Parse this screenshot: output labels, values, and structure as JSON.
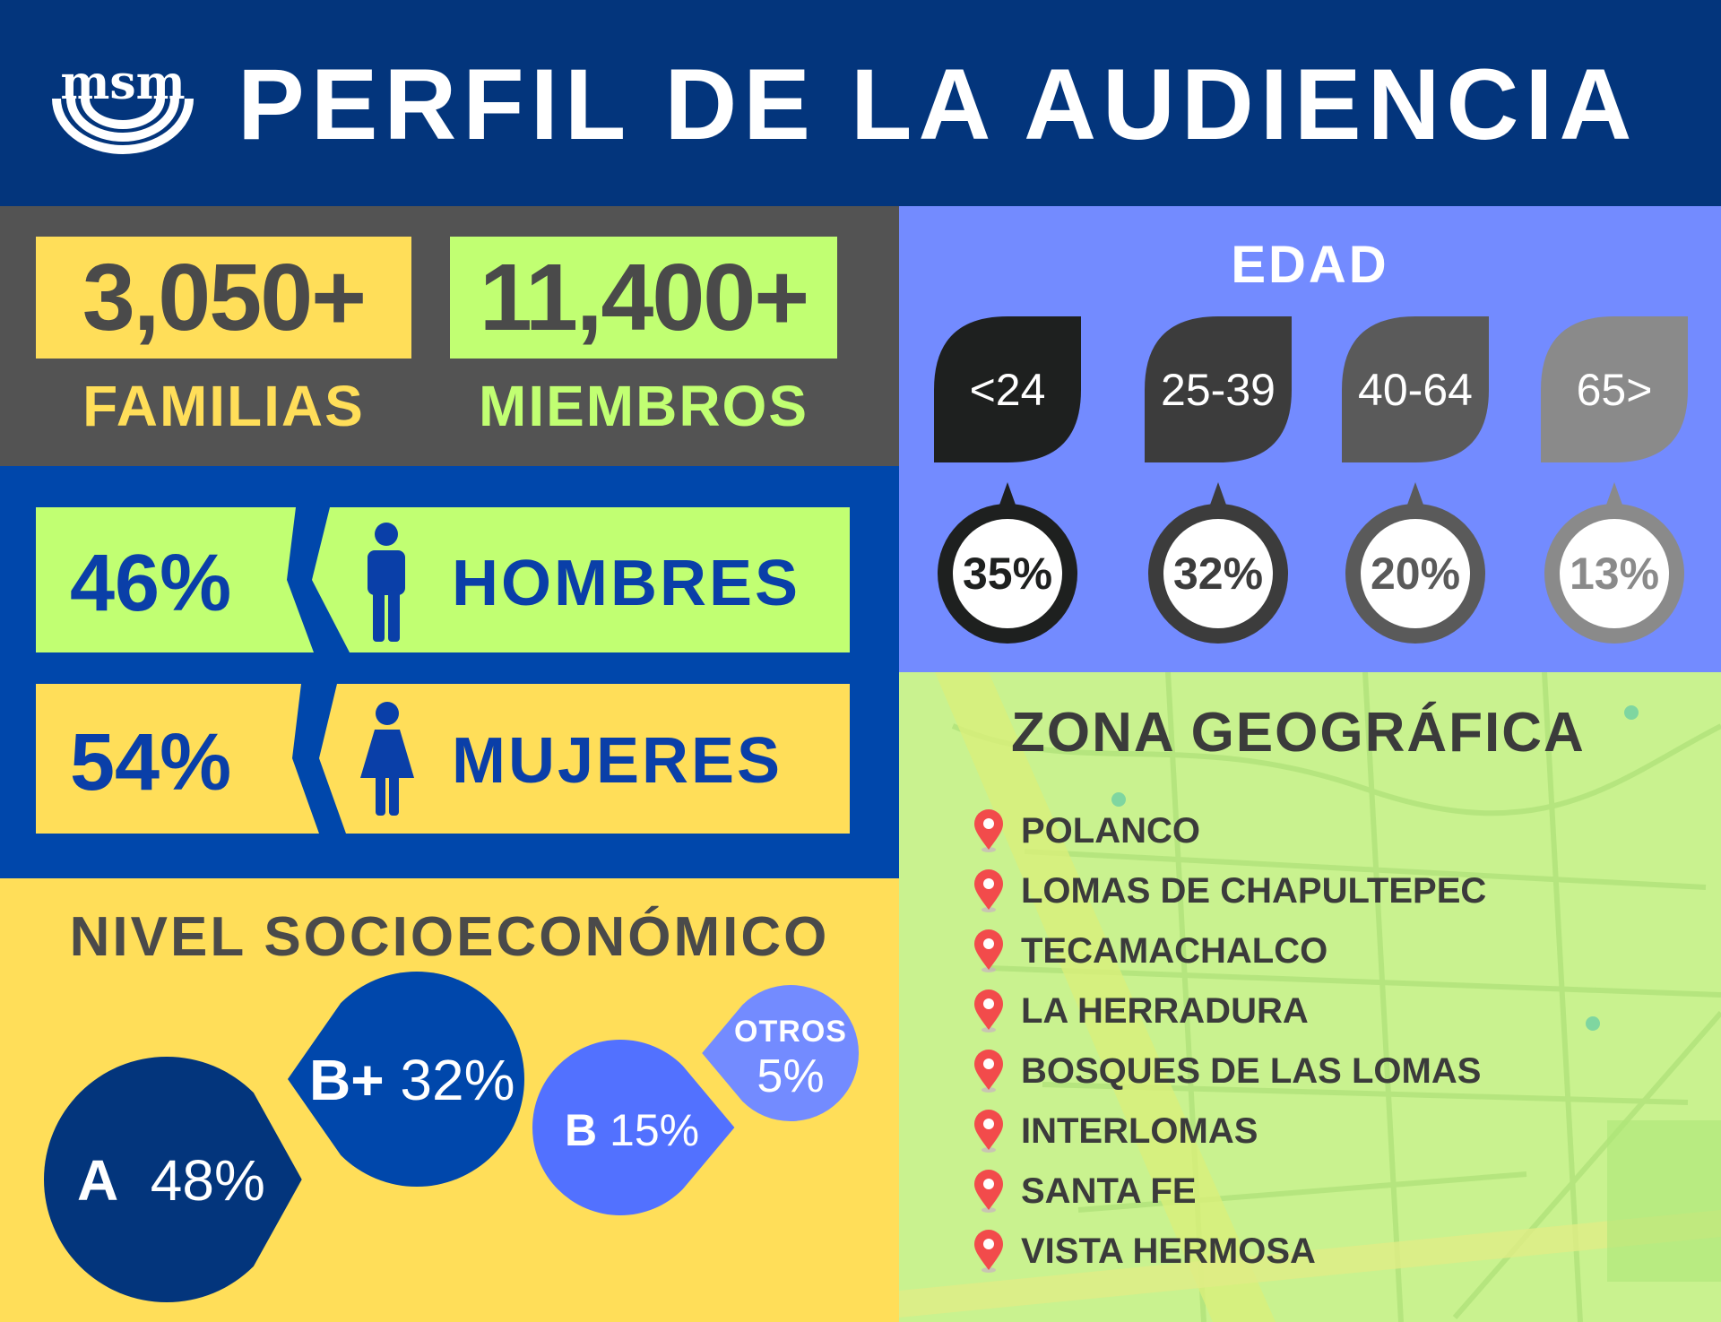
{
  "header": {
    "title": "PERFIL DE LA AUDIENCIA",
    "logo_text": "MSM",
    "colors": {
      "bg": "#03357c"
    }
  },
  "stats": [
    {
      "value": "3,050+",
      "label": "FAMILIAS",
      "box_color": "#ffde59",
      "label_color": "#ffde59"
    },
    {
      "value": "11,400+",
      "label": "MIEMBROS",
      "box_color": "#c1ff72",
      "label_color": "#c1ff72"
    }
  ],
  "gender": [
    {
      "percent": "46%",
      "label": "HOMBRES",
      "icon": "male-icon",
      "color": "#c1ff72"
    },
    {
      "percent": "54%",
      "label": "MUJERES",
      "icon": "female-icon",
      "color": "#ffde59"
    }
  ],
  "nse": {
    "title": "NIVEL SOCIOECONÓMICO",
    "levels": [
      {
        "label": "A",
        "value": "48%",
        "color": "#03357c"
      },
      {
        "label": "B+",
        "value": "32%",
        "color": "#0047ab"
      },
      {
        "label": "B",
        "value": "15%",
        "color": "#5271ff"
      },
      {
        "label": "OTROS",
        "value": "5%",
        "color": "#738bff"
      }
    ]
  },
  "edad": {
    "title": "EDAD",
    "groups": [
      {
        "range": "<24",
        "value": "35%",
        "color": "#1e201f"
      },
      {
        "range": "25-39",
        "value": "32%",
        "color": "#3c3c3c"
      },
      {
        "range": "40-64",
        "value": "20%",
        "color": "#5a5a5a"
      },
      {
        "range": "65>",
        "value": "13%",
        "color": "#8a8a8a"
      }
    ]
  },
  "zona": {
    "title": "ZONA GEOGRÁFICA",
    "items": [
      "POLANCO",
      "LOMAS DE CHAPULTEPEC",
      "TECAMACHALCO",
      "LA HERRADURA",
      "BOSQUES DE LAS LOMAS",
      "INTERLOMAS",
      "SANTA FE",
      "VISTA HERMOSA"
    ]
  }
}
